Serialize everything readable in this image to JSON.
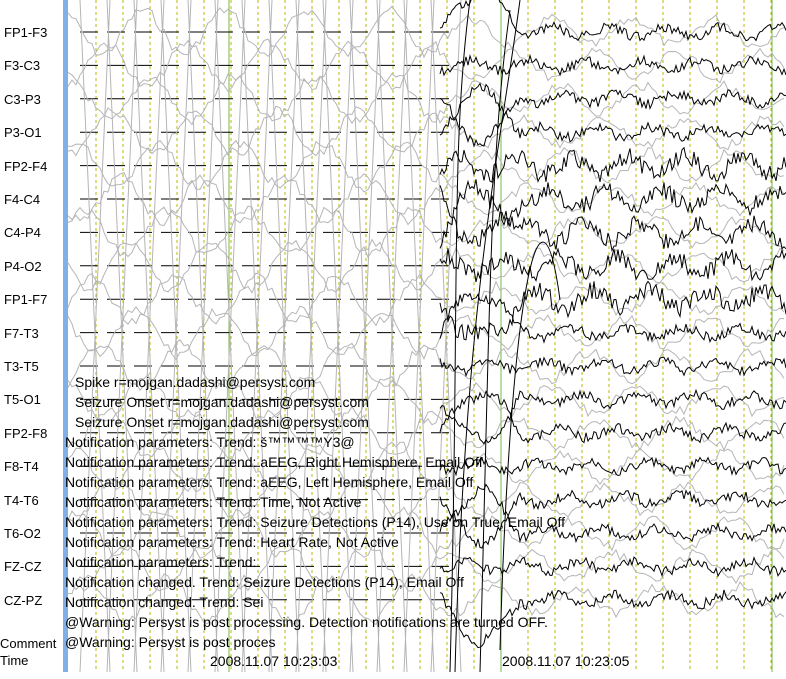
{
  "channels": [
    {
      "label": "FP1-F3"
    },
    {
      "label": "F3-C3"
    },
    {
      "label": "C3-P3"
    },
    {
      "label": "P3-O1"
    },
    {
      "label": "FP2-F4"
    },
    {
      "label": "F4-C4"
    },
    {
      "label": "C4-P4"
    },
    {
      "label": "P4-O2"
    },
    {
      "label": "FP1-F7"
    },
    {
      "label": "F7-T3"
    },
    {
      "label": "T3-T5"
    },
    {
      "label": "T5-O1"
    },
    {
      "label": "FP2-F8"
    },
    {
      "label": "F8-T4"
    },
    {
      "label": "T4-T6"
    },
    {
      "label": "T6-O2"
    },
    {
      "label": "FZ-CZ"
    },
    {
      "label": "CZ-PZ"
    }
  ],
  "bottom": {
    "comment_label": "Comment",
    "time_label": "Time"
  },
  "annotations": [
    "Spike r=mojgan.dadashi@persyst.com",
    "Seizure Onset r=mojgan.dadashi@persyst.com",
    "Seizure Onset r=mojgan.dadashi@persyst.com",
    "Notification parameters: Trend: š™™™™Y3@",
    "Notification parameters: Trend: aEEG, Right Hemisphere, Email Off",
    "Notification parameters: Trend: aEEG, Left Hemisphere, Email Off",
    "Notification parameters: Trend: Time, Not Active",
    "Notification parameters: Trend: Seizure Detections (P14), Use on True, Email Off",
    "Notification parameters: Trend: Heart Rate, Not Active",
    "Notification parameters: Trend:",
    "Notification changed. Trend: Seizure Detections (P14), Email Off",
    "Notification changed. Trend: Sei",
    "@Warning: Persyst is post processing. Detection notifications are turned OFF.",
    "@Warning: Persyst is post proces"
  ],
  "timestamps": [
    "2008.11.07 10:23:03",
    "2008.11.07 10:23:05"
  ],
  "colors": {
    "trace": "#000000",
    "ghost_trace": "#b5b5b5",
    "second_line": "#7ab648",
    "sub_line": "#b8b800",
    "accent_bar": "#7fb0e8"
  }
}
